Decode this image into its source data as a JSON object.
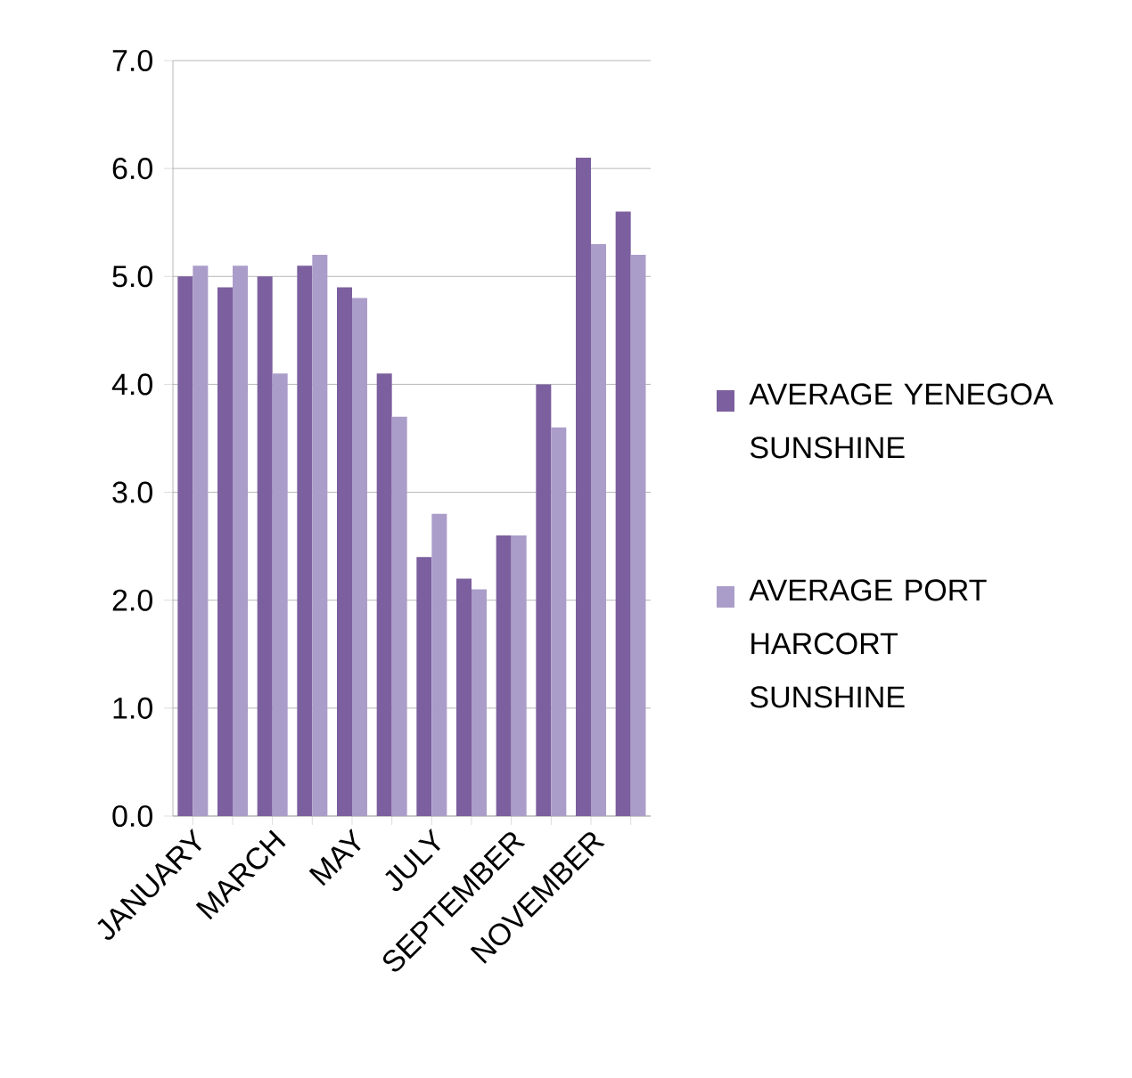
{
  "chart_data": {
    "type": "bar",
    "categories": [
      "JANUARY",
      null,
      "MARCH",
      null,
      "MAY",
      null,
      "JULY",
      null,
      "SEPTEMBER",
      null,
      "NOVEMBER",
      null
    ],
    "series": [
      {
        "name": "AVERAGE YENEGOA SUNSHINE",
        "color": "#7b5f9e",
        "values": [
          5.0,
          4.9,
          5.0,
          5.1,
          4.9,
          4.1,
          2.4,
          2.2,
          2.6,
          4.0,
          6.1,
          5.6
        ]
      },
      {
        "name": "AVERAGE PORT HARCORT SUNSHINE",
        "color": "#ab9dc9",
        "values": [
          5.1,
          5.1,
          4.1,
          5.2,
          4.8,
          3.7,
          2.8,
          2.1,
          2.6,
          3.6,
          5.3,
          5.2
        ]
      }
    ],
    "ylim": [
      0,
      7
    ],
    "yticks": [
      {
        "value": 0,
        "label": "0.0"
      },
      {
        "value": 1,
        "label": "1.0"
      },
      {
        "value": 2,
        "label": "2.0"
      },
      {
        "value": 3,
        "label": "3.0"
      },
      {
        "value": 4,
        "label": "4.0"
      },
      {
        "value": 5,
        "label": "5.0"
      },
      {
        "value": 6,
        "label": "6.0"
      },
      {
        "value": 7,
        "label": "7.0"
      }
    ],
    "grid": "y",
    "legend": "right"
  }
}
